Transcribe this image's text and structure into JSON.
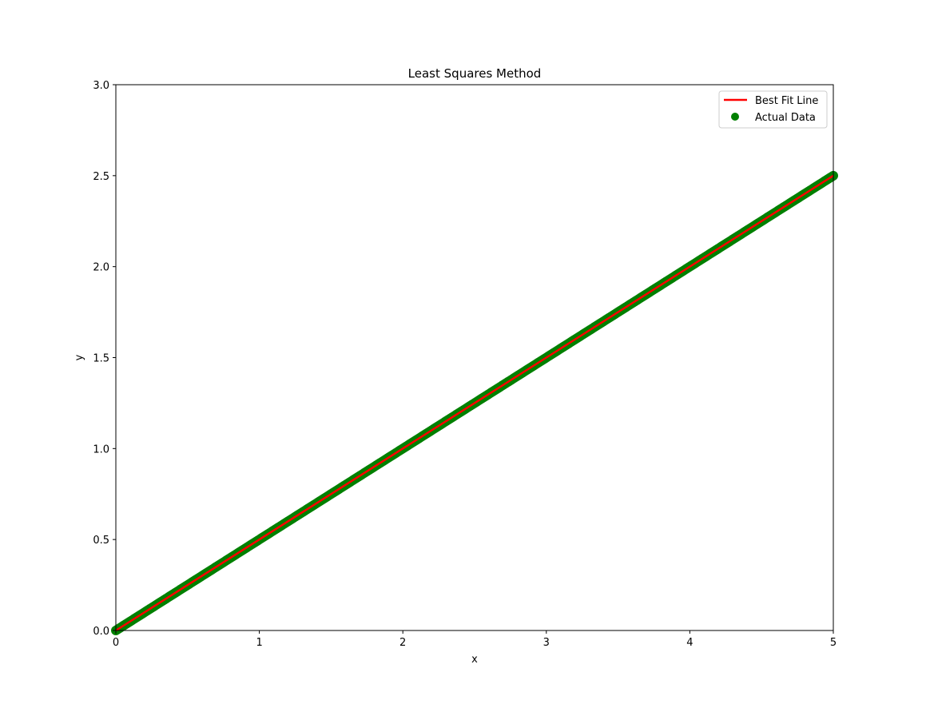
{
  "chart_data": {
    "type": "line",
    "title": "Least Squares Method",
    "xlabel": "x",
    "ylabel": "y",
    "xlim": [
      0,
      5
    ],
    "ylim": [
      0,
      3.0
    ],
    "xticks": [
      "0",
      "1",
      "2",
      "3",
      "4",
      "5"
    ],
    "yticks": [
      "0.0",
      "0.5",
      "1.0",
      "1.5",
      "2.0",
      "2.5",
      "3.0"
    ],
    "grid": false,
    "legend_position": "top-right",
    "series": [
      {
        "name": "Best Fit Line",
        "kind": "line",
        "color": "#ff0000",
        "x": [
          0,
          5
        ],
        "y": [
          0.0,
          2.5
        ]
      },
      {
        "name": "Actual Data",
        "kind": "scatter",
        "color": "#008000",
        "x_start": 0,
        "x_end": 5,
        "slope": 0.5,
        "intercept": 0.0,
        "point_count": 500
      }
    ]
  }
}
